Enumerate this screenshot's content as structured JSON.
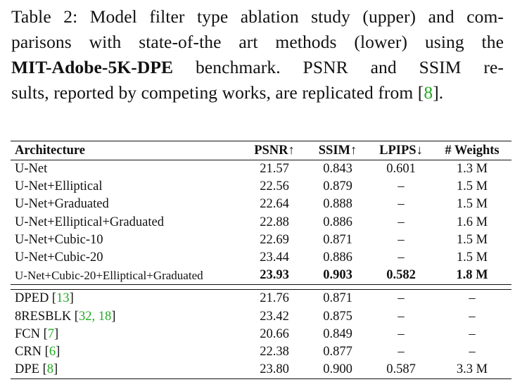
{
  "caption": {
    "line1": "Table 2: Model filter type ablation study (upper) and com-",
    "line2": "parisons with state-of-the art methods (lower) using the",
    "line3_bold": "MIT-Adobe-5K-DPE",
    "line3_rest": " benchmark.  PSNR and SSIM re-",
    "line4_pre": "sults, reported by competing works, are replicated from [",
    "line4_cite": "8",
    "line4_post": "]."
  },
  "table": {
    "headers": [
      "Architecture",
      "PSNR↑",
      "SSIM↑",
      "LPIPS↓",
      "# Weights"
    ],
    "upper_rows": [
      {
        "arch": "U-Net",
        "psnr": "21.57",
        "ssim": "0.843",
        "lpips": "0.601",
        "weights": "1.3 M"
      },
      {
        "arch": "U-Net+Elliptical",
        "psnr": "22.56",
        "ssim": "0.879",
        "lpips": "–",
        "weights": "1.5 M"
      },
      {
        "arch": "U-Net+Graduated",
        "psnr": "22.64",
        "ssim": "0.888",
        "lpips": "–",
        "weights": "1.5 M"
      },
      {
        "arch": "U-Net+Elliptical+Graduated",
        "psnr": "22.88",
        "ssim": "0.886",
        "lpips": "–",
        "weights": "1.6 M"
      },
      {
        "arch": "U-Net+Cubic-10",
        "psnr": "22.69",
        "ssim": "0.871",
        "lpips": "–",
        "weights": "1.5 M"
      },
      {
        "arch": "U-Net+Cubic-20",
        "psnr": "23.44",
        "ssim": "0.886",
        "lpips": "–",
        "weights": "1.5 M"
      },
      {
        "arch": "U-Net+Cubic-20+Elliptical+Graduated",
        "psnr": "23.93",
        "ssim": "0.903",
        "lpips": "0.582",
        "weights": "1.8 M"
      }
    ],
    "lower_rows": [
      {
        "arch": "DPED [",
        "cites": "13",
        "arch_end": "]",
        "psnr": "21.76",
        "ssim": "0.871",
        "lpips": "–",
        "weights": "–"
      },
      {
        "arch": "8RESBLK [",
        "cites": "32, 18",
        "arch_end": "]",
        "psnr": "23.42",
        "ssim": "0.875",
        "lpips": "–",
        "weights": "–"
      },
      {
        "arch": "FCN [",
        "cites": "7",
        "arch_end": "]",
        "psnr": "20.66",
        "ssim": "0.849",
        "lpips": "–",
        "weights": "–"
      },
      {
        "arch": "CRN [",
        "cites": "6",
        "arch_end": "]",
        "psnr": "22.38",
        "ssim": "0.877",
        "lpips": "–",
        "weights": "–"
      },
      {
        "arch": "DPE [",
        "cites": "8",
        "arch_end": "]",
        "psnr": "23.80",
        "ssim": "0.900",
        "lpips": "0.587",
        "weights": "3.3 M"
      }
    ]
  },
  "colors": {
    "citation": "#22aa22",
    "text": "#111111"
  }
}
